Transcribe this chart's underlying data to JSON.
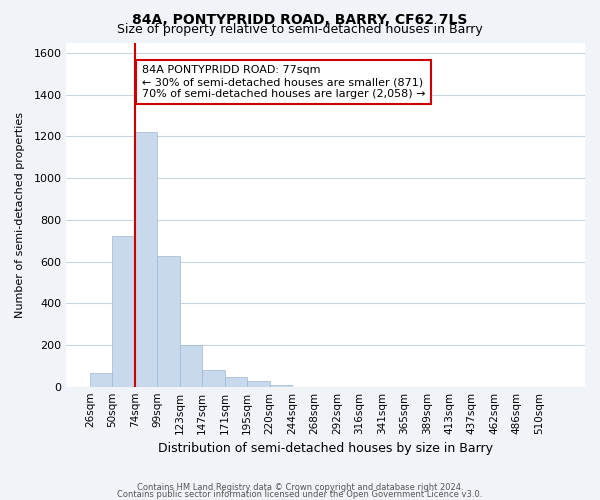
{
  "title1": "84A, PONTYPRIDD ROAD, BARRY, CF62 7LS",
  "title2": "Size of property relative to semi-detached houses in Barry",
  "xlabel": "Distribution of semi-detached houses by size in Barry",
  "ylabel": "Number of semi-detached properties",
  "bar_labels": [
    "26sqm",
    "50sqm",
    "74sqm",
    "99sqm",
    "123sqm",
    "147sqm",
    "171sqm",
    "195sqm",
    "220sqm",
    "244sqm",
    "268sqm",
    "292sqm",
    "316sqm",
    "341sqm",
    "365sqm",
    "389sqm",
    "413sqm",
    "437sqm",
    "462sqm",
    "486sqm",
    "510sqm"
  ],
  "bar_values": [
    65,
    720,
    1220,
    625,
    200,
    80,
    45,
    25,
    10,
    0,
    0,
    0,
    0,
    0,
    0,
    0,
    0,
    0,
    0,
    0,
    0
  ],
  "bar_color": "#c8d9ed",
  "bar_edge_color": "#a0b8d0",
  "property_line_x": 2,
  "property_line_color": "#cc0000",
  "annotation_text": "84A PONTYPRIDD ROAD: 77sqm\n← 30% of semi-detached houses are smaller (871)\n70% of semi-detached houses are larger (2,058) →",
  "annotation_box_color": "#ffffff",
  "annotation_box_edge_color": "#cc0000",
  "ylim": [
    0,
    1650
  ],
  "yticks": [
    0,
    200,
    400,
    600,
    800,
    1000,
    1200,
    1400,
    1600
  ],
  "footer1": "Contains HM Land Registry data © Crown copyright and database right 2024.",
  "footer2": "Contains public sector information licensed under the Open Government Licence v3.0.",
  "bg_color": "#f0f4f8",
  "plot_bg_color": "#ffffff",
  "grid_color": "#c8d4e0"
}
